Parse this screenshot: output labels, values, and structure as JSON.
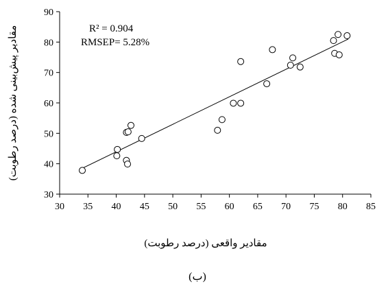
{
  "chart_data": {
    "type": "scatter",
    "xlabel": "مقادیر واقعی (درصد رطوبت)",
    "ylabel": "مقادیر پیش‌بینی شده (درصد رطوبت)",
    "xlim": [
      30,
      85
    ],
    "ylim": [
      30,
      90
    ],
    "xticks": [
      30,
      35,
      40,
      45,
      50,
      55,
      60,
      65,
      70,
      75,
      80,
      85
    ],
    "yticks": [
      30,
      40,
      50,
      60,
      70,
      80,
      90
    ],
    "annotations": [
      "R² = 0.904",
      "RMSEP= 5.28%"
    ],
    "caption": "(ب)",
    "grid": false,
    "trendline": {
      "x": [
        34.0,
        81.0
      ],
      "y": [
        38.5,
        81.0
      ]
    },
    "points": [
      {
        "x": 34.0,
        "y": 37.8
      },
      {
        "x": 40.1,
        "y": 42.6
      },
      {
        "x": 40.2,
        "y": 44.7
      },
      {
        "x": 41.8,
        "y": 41.1
      },
      {
        "x": 42.0,
        "y": 39.9
      },
      {
        "x": 41.8,
        "y": 50.3
      },
      {
        "x": 42.1,
        "y": 50.5
      },
      {
        "x": 42.6,
        "y": 52.6
      },
      {
        "x": 44.5,
        "y": 48.3
      },
      {
        "x": 57.9,
        "y": 51.0
      },
      {
        "x": 58.7,
        "y": 54.5
      },
      {
        "x": 60.7,
        "y": 59.9
      },
      {
        "x": 62.0,
        "y": 59.9
      },
      {
        "x": 62.0,
        "y": 73.6
      },
      {
        "x": 66.6,
        "y": 66.3
      },
      {
        "x": 67.6,
        "y": 77.5
      },
      {
        "x": 70.8,
        "y": 72.4
      },
      {
        "x": 71.2,
        "y": 74.8
      },
      {
        "x": 72.5,
        "y": 71.8
      },
      {
        "x": 78.4,
        "y": 80.5
      },
      {
        "x": 78.6,
        "y": 76.3
      },
      {
        "x": 79.2,
        "y": 82.5
      },
      {
        "x": 79.4,
        "y": 75.8
      },
      {
        "x": 80.8,
        "y": 82.1
      }
    ]
  }
}
